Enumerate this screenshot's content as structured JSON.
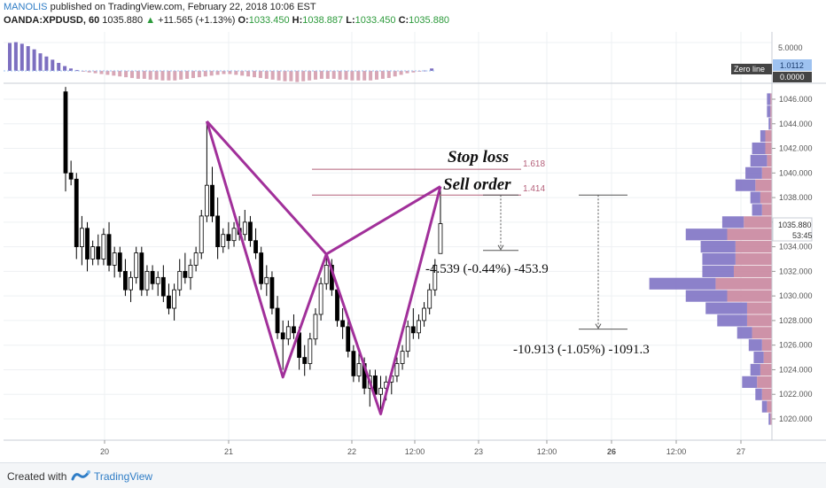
{
  "header": {
    "author": "MANOLIS",
    "published": "published on TradingView.com, February 22, 2018 10:06 EST",
    "symbol": "OANDA:XPDUSD, 60",
    "last": "1035.880",
    "change_arrow": "▲",
    "change": "+11.565 (+1.13%)",
    "o_label": "O:",
    "o": "1033.450",
    "h_label": "H:",
    "h": "1038.887",
    "l_label": "L:",
    "l": "1033.450",
    "c_label": "C:",
    "c": "1035.880"
  },
  "footer": {
    "created_with": "Created with",
    "brand": "TradingView"
  },
  "colors": {
    "pattern": "#a1309a",
    "stop_line": "#b4607a",
    "candle_up": "#ffffff",
    "candle_down": "#000000",
    "hist_positive": "#7d6fc0",
    "hist_negative": "#d8a7b6",
    "vp_left": "#7f73c4",
    "vp_right": "#c9869f",
    "label_bg_blue": "#9ec2f0",
    "label_bg_dark": "#444444"
  },
  "chart_data": {
    "type": "candlestick",
    "symbol": "OANDA:XPDUSD",
    "timeframe": "60",
    "y_axis": {
      "range": [
        1019,
        1047
      ],
      "ticks": [
        "1046.000",
        "1044.000",
        "1042.000",
        "1040.000",
        "1038.000",
        "1036.000",
        "1034.000",
        "1032.000",
        "1030.000",
        "1028.000",
        "1026.000",
        "1024.000",
        "1022.000",
        "1020.000"
      ],
      "last_price_label": "1035.880",
      "countdown_label": "53:45"
    },
    "x_axis": {
      "labels": [
        "20",
        "21",
        "22",
        "12:00",
        "23",
        "12:00",
        "26",
        "12:00",
        "27"
      ],
      "bold_labels": [
        "26"
      ]
    },
    "candles": [
      {
        "o": 1046.6,
        "h": 1047.0,
        "l": 1038.5,
        "c": 1040.0
      },
      {
        "o": 1040.0,
        "h": 1041.0,
        "l": 1039.0,
        "c": 1039.5
      },
      {
        "o": 1039.5,
        "h": 1040.0,
        "l": 1033.0,
        "c": 1034.0
      },
      {
        "o": 1034.0,
        "h": 1036.5,
        "l": 1032.5,
        "c": 1035.5
      },
      {
        "o": 1035.5,
        "h": 1036.0,
        "l": 1032.0,
        "c": 1033.0
      },
      {
        "o": 1033.0,
        "h": 1034.5,
        "l": 1032.5,
        "c": 1034.0
      },
      {
        "o": 1034.0,
        "h": 1035.0,
        "l": 1032.5,
        "c": 1033.0
      },
      {
        "o": 1033.0,
        "h": 1035.5,
        "l": 1032.5,
        "c": 1035.0
      },
      {
        "o": 1035.0,
        "h": 1036.0,
        "l": 1032.0,
        "c": 1032.5
      },
      {
        "o": 1032.5,
        "h": 1034.0,
        "l": 1031.5,
        "c": 1033.5
      },
      {
        "o": 1033.5,
        "h": 1034.0,
        "l": 1031.5,
        "c": 1032.0
      },
      {
        "o": 1032.0,
        "h": 1033.0,
        "l": 1030.0,
        "c": 1030.5
      },
      {
        "o": 1030.5,
        "h": 1032.0,
        "l": 1029.5,
        "c": 1031.5
      },
      {
        "o": 1031.5,
        "h": 1034.0,
        "l": 1031.0,
        "c": 1033.5
      },
      {
        "o": 1033.5,
        "h": 1034.0,
        "l": 1030.0,
        "c": 1030.5
      },
      {
        "o": 1030.5,
        "h": 1032.5,
        "l": 1030.0,
        "c": 1032.0
      },
      {
        "o": 1032.0,
        "h": 1032.5,
        "l": 1030.5,
        "c": 1031.0
      },
      {
        "o": 1031.0,
        "h": 1032.0,
        "l": 1030.0,
        "c": 1031.5
      },
      {
        "o": 1031.5,
        "h": 1032.5,
        "l": 1029.5,
        "c": 1030.0
      },
      {
        "o": 1030.0,
        "h": 1031.0,
        "l": 1028.5,
        "c": 1029.0
      },
      {
        "o": 1029.0,
        "h": 1031.0,
        "l": 1028.0,
        "c": 1030.5
      },
      {
        "o": 1030.5,
        "h": 1033.0,
        "l": 1030.0,
        "c": 1032.0
      },
      {
        "o": 1032.0,
        "h": 1033.5,
        "l": 1031.0,
        "c": 1031.5
      },
      {
        "o": 1031.5,
        "h": 1033.0,
        "l": 1030.5,
        "c": 1032.5
      },
      {
        "o": 1032.5,
        "h": 1034.0,
        "l": 1032.0,
        "c": 1033.5
      },
      {
        "o": 1033.5,
        "h": 1037.0,
        "l": 1033.0,
        "c": 1036.5
      },
      {
        "o": 1036.5,
        "h": 1044.2,
        "l": 1036.0,
        "c": 1039.0
      },
      {
        "o": 1039.0,
        "h": 1040.5,
        "l": 1036.0,
        "c": 1036.5
      },
      {
        "o": 1036.5,
        "h": 1038.0,
        "l": 1033.0,
        "c": 1034.0
      },
      {
        "o": 1034.0,
        "h": 1035.5,
        "l": 1033.5,
        "c": 1035.0
      },
      {
        "o": 1035.0,
        "h": 1036.0,
        "l": 1033.8,
        "c": 1034.5
      },
      {
        "o": 1034.5,
        "h": 1036.0,
        "l": 1034.0,
        "c": 1035.5
      },
      {
        "o": 1035.5,
        "h": 1036.5,
        "l": 1034.5,
        "c": 1035.0
      },
      {
        "o": 1035.0,
        "h": 1037.0,
        "l": 1034.5,
        "c": 1036.0
      },
      {
        "o": 1036.0,
        "h": 1036.5,
        "l": 1034.0,
        "c": 1034.5
      },
      {
        "o": 1034.5,
        "h": 1035.5,
        "l": 1033.0,
        "c": 1033.5
      },
      {
        "o": 1033.5,
        "h": 1034.0,
        "l": 1030.5,
        "c": 1031.0
      },
      {
        "o": 1031.0,
        "h": 1032.5,
        "l": 1030.0,
        "c": 1031.5
      },
      {
        "o": 1031.5,
        "h": 1032.0,
        "l": 1028.5,
        "c": 1029.0
      },
      {
        "o": 1029.0,
        "h": 1030.0,
        "l": 1026.5,
        "c": 1027.0
      },
      {
        "o": 1027.0,
        "h": 1028.0,
        "l": 1024.0,
        "c": 1026.5
      },
      {
        "o": 1026.5,
        "h": 1028.0,
        "l": 1026.0,
        "c": 1027.5
      },
      {
        "o": 1027.5,
        "h": 1028.5,
        "l": 1026.5,
        "c": 1027.0
      },
      {
        "o": 1027.0,
        "h": 1027.5,
        "l": 1024.0,
        "c": 1025.0
      },
      {
        "o": 1025.0,
        "h": 1026.0,
        "l": 1023.5,
        "c": 1024.5
      },
      {
        "o": 1024.5,
        "h": 1027.0,
        "l": 1024.0,
        "c": 1026.5
      },
      {
        "o": 1026.5,
        "h": 1029.0,
        "l": 1026.0,
        "c": 1028.5
      },
      {
        "o": 1028.5,
        "h": 1031.5,
        "l": 1028.0,
        "c": 1031.0
      },
      {
        "o": 1031.0,
        "h": 1033.4,
        "l": 1030.5,
        "c": 1032.5
      },
      {
        "o": 1032.5,
        "h": 1033.0,
        "l": 1030.0,
        "c": 1030.5
      },
      {
        "o": 1030.5,
        "h": 1031.0,
        "l": 1027.5,
        "c": 1028.0
      },
      {
        "o": 1028.0,
        "h": 1029.0,
        "l": 1026.5,
        "c": 1027.5
      },
      {
        "o": 1027.5,
        "h": 1028.0,
        "l": 1025.0,
        "c": 1025.5
      },
      {
        "o": 1025.5,
        "h": 1026.0,
        "l": 1023.0,
        "c": 1023.5
      },
      {
        "o": 1023.5,
        "h": 1025.5,
        "l": 1023.0,
        "c": 1024.5
      },
      {
        "o": 1024.5,
        "h": 1025.0,
        "l": 1022.0,
        "c": 1022.5
      },
      {
        "o": 1022.5,
        "h": 1024.0,
        "l": 1021.0,
        "c": 1023.5
      },
      {
        "o": 1023.5,
        "h": 1024.0,
        "l": 1021.5,
        "c": 1022.0
      },
      {
        "o": 1022.0,
        "h": 1023.5,
        "l": 1020.5,
        "c": 1022.5
      },
      {
        "o": 1022.5,
        "h": 1023.5,
        "l": 1021.5,
        "c": 1023.0
      },
      {
        "o": 1023.0,
        "h": 1024.0,
        "l": 1022.0,
        "c": 1023.5
      },
      {
        "o": 1023.5,
        "h": 1025.0,
        "l": 1023.0,
        "c": 1024.5
      },
      {
        "o": 1024.5,
        "h": 1026.0,
        "l": 1024.0,
        "c": 1025.5
      },
      {
        "o": 1025.5,
        "h": 1028.0,
        "l": 1025.0,
        "c": 1027.5
      },
      {
        "o": 1027.5,
        "h": 1029.0,
        "l": 1026.5,
        "c": 1027.0
      },
      {
        "o": 1027.0,
        "h": 1028.5,
        "l": 1026.5,
        "c": 1028.0
      },
      {
        "o": 1028.0,
        "h": 1029.5,
        "l": 1027.5,
        "c": 1029.0
      },
      {
        "o": 1029.0,
        "h": 1031.0,
        "l": 1028.5,
        "c": 1030.5
      },
      {
        "o": 1030.5,
        "h": 1033.0,
        "l": 1030.0,
        "c": 1032.5
      },
      {
        "o": 1033.45,
        "h": 1038.887,
        "l": 1033.45,
        "c": 1035.88
      }
    ],
    "pattern": {
      "name": "harmonic XABCD",
      "points": [
        {
          "bar": 26,
          "price": 1044.2
        },
        {
          "bar": 40,
          "price": 1023.4
        },
        {
          "bar": 48,
          "price": 1033.4
        },
        {
          "bar": 58,
          "price": 1020.4
        },
        {
          "bar": 69,
          "price": 1038.9
        }
      ]
    },
    "levels": [
      {
        "name": "Stop loss",
        "ratio": "1.618",
        "price": 1040.3
      },
      {
        "name": "Sell order",
        "ratio": "1.414",
        "price": 1038.2
      }
    ],
    "measures": [
      {
        "label": "-4.539 (-0.44%) -453.9",
        "from": 1038.2,
        "to": 1033.7
      },
      {
        "label": "-10.913 (-1.05%) -1091.3",
        "from": 1038.2,
        "to": 1027.3
      }
    ],
    "volume_profile": [
      {
        "price": 1046.0,
        "a": 2,
        "b": 1
      },
      {
        "price": 1045.0,
        "a": 2,
        "b": 1
      },
      {
        "price": 1044.0,
        "a": 1,
        "b": 1
      },
      {
        "price": 1043.0,
        "a": 3,
        "b": 4
      },
      {
        "price": 1042.0,
        "a": 8,
        "b": 4
      },
      {
        "price": 1041.0,
        "a": 10,
        "b": 3
      },
      {
        "price": 1040.0,
        "a": 10,
        "b": 6
      },
      {
        "price": 1039.0,
        "a": 12,
        "b": 10
      },
      {
        "price": 1038.0,
        "a": 6,
        "b": 7
      },
      {
        "price": 1037.0,
        "a": 6,
        "b": 6
      },
      {
        "price": 1036.0,
        "a": 13,
        "b": 17
      },
      {
        "price": 1035.0,
        "a": 25,
        "b": 27
      },
      {
        "price": 1034.0,
        "a": 21,
        "b": 22
      },
      {
        "price": 1033.0,
        "a": 20,
        "b": 22
      },
      {
        "price": 1032.0,
        "a": 19,
        "b": 23
      },
      {
        "price": 1031.0,
        "a": 40,
        "b": 34
      },
      {
        "price": 1030.0,
        "a": 25,
        "b": 27
      },
      {
        "price": 1029.0,
        "a": 25,
        "b": 15
      },
      {
        "price": 1028.0,
        "a": 18,
        "b": 15
      },
      {
        "price": 1027.0,
        "a": 9,
        "b": 12
      },
      {
        "price": 1026.0,
        "a": 8,
        "b": 6
      },
      {
        "price": 1025.0,
        "a": 6,
        "b": 5
      },
      {
        "price": 1024.0,
        "a": 6,
        "b": 7
      },
      {
        "price": 1023.0,
        "a": 9,
        "b": 9
      },
      {
        "price": 1022.0,
        "a": 4,
        "b": 6
      },
      {
        "price": 1021.0,
        "a": 3,
        "b": 3
      },
      {
        "price": 1020.0,
        "a": 1,
        "b": 1
      }
    ],
    "indicator_panel": {
      "ticks": [
        "5.0000"
      ],
      "value_label": "1.0112",
      "zero_label": "Zero line",
      "zero_value": "0.0000",
      "histogram": [
        3.5,
        3.6,
        3.4,
        3.1,
        2.7,
        2.2,
        1.8,
        1.4,
        1.0,
        0.6,
        0.3,
        0.1,
        -0.1,
        -0.2,
        -0.3,
        -0.4,
        -0.5,
        -0.6,
        -0.7,
        -0.8,
        -0.9,
        -1.0,
        -1.0,
        -1.1,
        -1.1,
        -1.2,
        -1.2,
        -1.2,
        -1.1,
        -1.0,
        -0.9,
        -0.8,
        -0.7,
        -0.6,
        -0.5,
        -0.4,
        -0.4,
        -0.5,
        -0.6,
        -0.7,
        -0.8,
        -0.9,
        -1.0,
        -1.1,
        -1.2,
        -1.3,
        -1.3,
        -1.4,
        -1.3,
        -1.2,
        -1.1,
        -1.0,
        -1.0,
        -1.0,
        -1.1,
        -1.1,
        -1.2,
        -1.2,
        -1.2,
        -1.2,
        -1.1,
        -1.0,
        -0.9,
        -0.7,
        -0.5,
        -0.3,
        -0.2,
        -0.1,
        0.05,
        0.3
      ]
    }
  }
}
